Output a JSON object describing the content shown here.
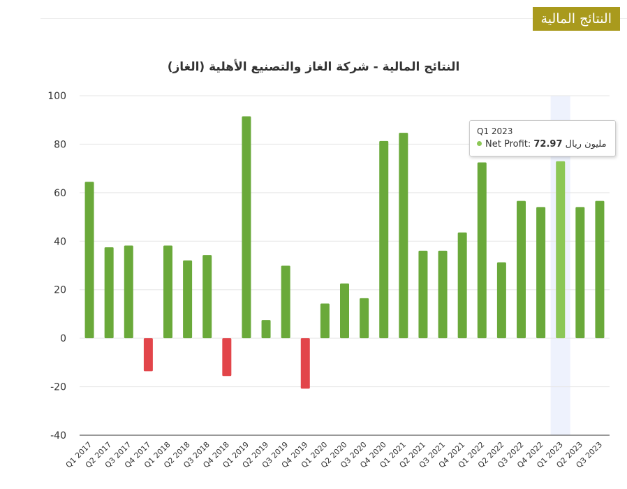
{
  "header": {
    "badge_label": "النتائج المالية"
  },
  "chart_data": {
    "type": "bar",
    "title": "النتائج المالية - شركة الغاز والتصنيع الأهلية (الغاز)",
    "xlabel": "",
    "ylabel": "",
    "ylim": [
      -40,
      100
    ],
    "yticks": [
      -40,
      -20,
      0,
      20,
      40,
      60,
      80,
      100
    ],
    "grid": true,
    "legend": "none",
    "categories": [
      "Q1 2017",
      "Q2 2017",
      "Q3 2017",
      "Q4 2017",
      "Q1 2018",
      "Q2 2018",
      "Q3 2018",
      "Q4 2018",
      "Q1 2019",
      "Q2 2019",
      "Q3 2019",
      "Q4 2019",
      "Q1 2020",
      "Q2 2020",
      "Q3 2020",
      "Q4 2020",
      "Q1 2021",
      "Q2 2021",
      "Q3 2021",
      "Q4 2021",
      "Q1 2022",
      "Q2 2022",
      "Q3 2022",
      "Q4 2022",
      "Q1 2023",
      "Q2 2023",
      "Q3 2023"
    ],
    "series": [
      {
        "name": "Net Profit",
        "values": [
          64.5,
          37.5,
          38.2,
          -13.6,
          38.2,
          32.1,
          34.3,
          -15.6,
          91.5,
          7.5,
          29.9,
          -20.8,
          14.3,
          22.6,
          16.5,
          81.3,
          84.7,
          36.1,
          36.1,
          43.6,
          72.5,
          31.3,
          56.6,
          54.1,
          72.97,
          54.1,
          56.6
        ]
      }
    ],
    "positive_color": "#6aa93a",
    "negative_color": "#e2454a",
    "highlight_color": "#8cc756",
    "highlight_band_color": "#eef2fd",
    "highlight_index": 24
  },
  "tooltip": {
    "category": "Q1 2023",
    "series_label": "Net Profit:",
    "value": "72.97",
    "unit": "مليون ريال"
  }
}
